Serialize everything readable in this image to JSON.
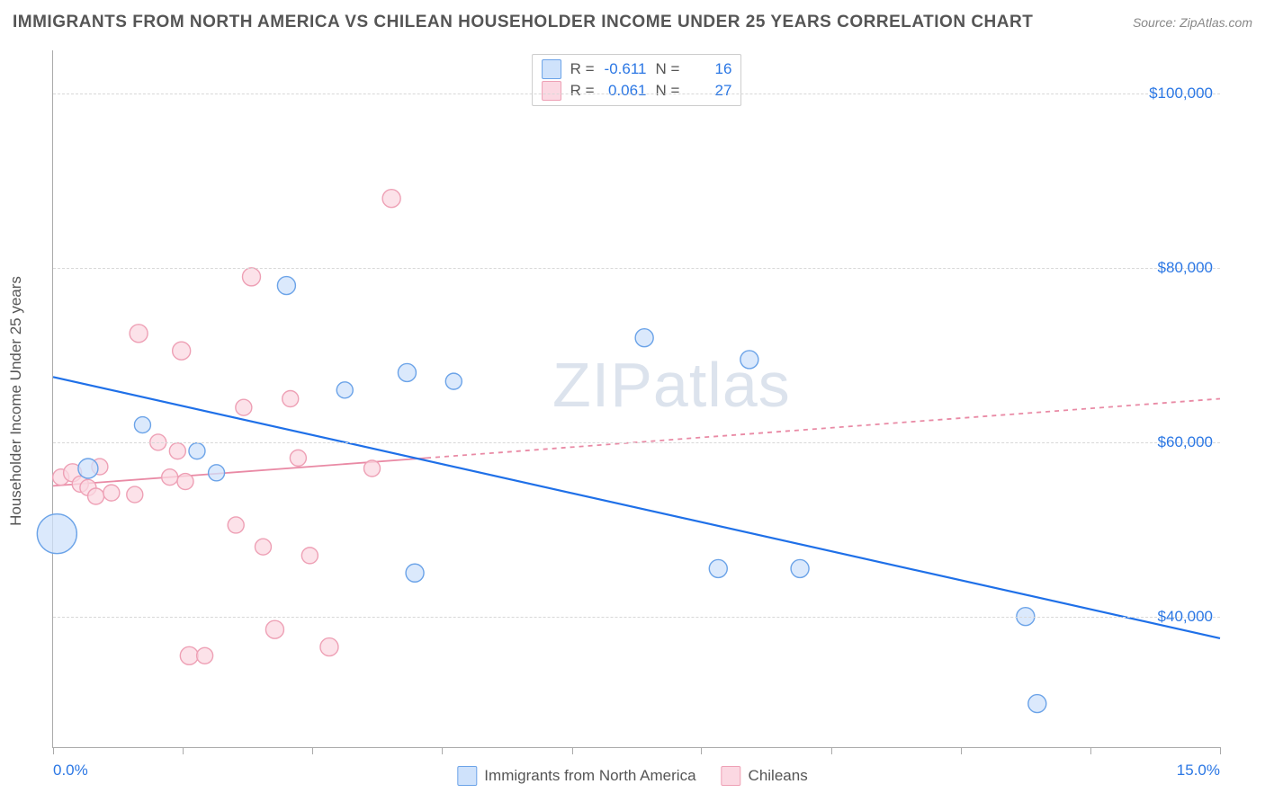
{
  "title": "IMMIGRANTS FROM NORTH AMERICA VS CHILEAN HOUSEHOLDER INCOME UNDER 25 YEARS CORRELATION CHART",
  "source_label": "Source: ZipAtlas.com",
  "watermark": "ZIPatlas",
  "chart": {
    "type": "scatter",
    "xlabel": "",
    "ylabel": "Householder Income Under 25 years",
    "xlim": [
      0.0,
      15.0
    ],
    "ylim": [
      25000,
      105000
    ],
    "xlim_labels": [
      "0.0%",
      "15.0%"
    ],
    "ytick_values": [
      40000,
      60000,
      80000,
      100000
    ],
    "ytick_labels": [
      "$40,000",
      "$60,000",
      "$80,000",
      "$100,000"
    ],
    "xtick_positions": [
      0,
      1.67,
      3.33,
      5.0,
      6.67,
      8.33,
      10.0,
      11.67,
      13.33,
      15.0
    ],
    "background_color": "#ffffff",
    "grid_color": "#d8d8d8",
    "axis_color": "#aaaaaa",
    "tick_label_color": "#2b77e4",
    "series": [
      {
        "name": "Immigrants from North America",
        "color_fill": "#cfe2fb",
        "color_stroke": "#6ba3e8",
        "marker": "circle",
        "opacity": 0.75,
        "R": -0.611,
        "N": 16,
        "trend": {
          "y_at_xmin": 67500,
          "y_at_xmax": 37500,
          "dash": "none",
          "width": 2.2,
          "color": "#1f70e8"
        },
        "trend_solid_until_x": 15.0,
        "points": [
          {
            "x": 0.05,
            "y": 49500,
            "r": 22
          },
          {
            "x": 0.45,
            "y": 57000,
            "r": 11
          },
          {
            "x": 1.15,
            "y": 62000,
            "r": 9
          },
          {
            "x": 1.85,
            "y": 59000,
            "r": 9
          },
          {
            "x": 2.1,
            "y": 56500,
            "r": 9
          },
          {
            "x": 3.0,
            "y": 78000,
            "r": 10
          },
          {
            "x": 3.75,
            "y": 66000,
            "r": 9
          },
          {
            "x": 4.55,
            "y": 68000,
            "r": 10
          },
          {
            "x": 5.15,
            "y": 67000,
            "r": 9
          },
          {
            "x": 4.65,
            "y": 45000,
            "r": 10
          },
          {
            "x": 7.6,
            "y": 72000,
            "r": 10
          },
          {
            "x": 8.95,
            "y": 69500,
            "r": 10
          },
          {
            "x": 8.55,
            "y": 45500,
            "r": 10
          },
          {
            "x": 9.6,
            "y": 45500,
            "r": 10
          },
          {
            "x": 12.5,
            "y": 40000,
            "r": 10
          },
          {
            "x": 12.65,
            "y": 30000,
            "r": 10
          }
        ]
      },
      {
        "name": "Chileans",
        "color_fill": "#fbd8e2",
        "color_stroke": "#eea0b5",
        "marker": "circle",
        "opacity": 0.75,
        "R": 0.061,
        "N": 27,
        "trend": {
          "y_at_xmin": 55000,
          "y_at_xmax": 65000,
          "dash": "5,5",
          "width": 1.8,
          "color": "#e98aa5"
        },
        "trend_solid_until_x": 4.8,
        "points": [
          {
            "x": 0.1,
            "y": 56000,
            "r": 9
          },
          {
            "x": 0.25,
            "y": 56500,
            "r": 10
          },
          {
            "x": 0.35,
            "y": 55200,
            "r": 9
          },
          {
            "x": 0.45,
            "y": 54800,
            "r": 9
          },
          {
            "x": 0.55,
            "y": 53800,
            "r": 9
          },
          {
            "x": 0.6,
            "y": 57200,
            "r": 9
          },
          {
            "x": 0.75,
            "y": 54200,
            "r": 9
          },
          {
            "x": 1.05,
            "y": 54000,
            "r": 9
          },
          {
            "x": 1.1,
            "y": 72500,
            "r": 10
          },
          {
            "x": 1.35,
            "y": 60000,
            "r": 9
          },
          {
            "x": 1.5,
            "y": 56000,
            "r": 9
          },
          {
            "x": 1.6,
            "y": 59000,
            "r": 9
          },
          {
            "x": 1.65,
            "y": 70500,
            "r": 10
          },
          {
            "x": 1.7,
            "y": 55500,
            "r": 9
          },
          {
            "x": 1.75,
            "y": 35500,
            "r": 10
          },
          {
            "x": 1.95,
            "y": 35500,
            "r": 9
          },
          {
            "x": 2.35,
            "y": 50500,
            "r": 9
          },
          {
            "x": 2.45,
            "y": 64000,
            "r": 9
          },
          {
            "x": 2.55,
            "y": 79000,
            "r": 10
          },
          {
            "x": 2.7,
            "y": 48000,
            "r": 9
          },
          {
            "x": 2.85,
            "y": 38500,
            "r": 10
          },
          {
            "x": 3.05,
            "y": 65000,
            "r": 9
          },
          {
            "x": 3.15,
            "y": 58200,
            "r": 9
          },
          {
            "x": 3.3,
            "y": 47000,
            "r": 9
          },
          {
            "x": 3.55,
            "y": 36500,
            "r": 10
          },
          {
            "x": 4.1,
            "y": 57000,
            "r": 9
          },
          {
            "x": 4.35,
            "y": 88000,
            "r": 10
          }
        ]
      }
    ]
  },
  "bottom_legend": [
    {
      "label": "Immigrants from North America",
      "fill": "#cfe2fb",
      "stroke": "#6ba3e8"
    },
    {
      "label": "Chileans",
      "fill": "#fbd8e2",
      "stroke": "#eea0b5"
    }
  ],
  "top_legend": [
    {
      "fill": "#cfe2fb",
      "stroke": "#6ba3e8",
      "R_label": "R =",
      "R": "-0.611",
      "N_label": "N =",
      "N": "16"
    },
    {
      "fill": "#fbd8e2",
      "stroke": "#eea0b5",
      "R_label": "R =",
      "R": "0.061",
      "N_label": "N =",
      "N": "27"
    }
  ]
}
